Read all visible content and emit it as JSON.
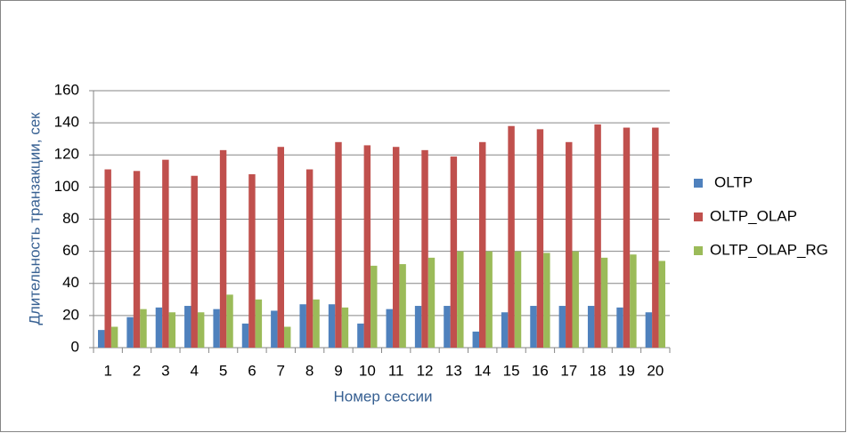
{
  "chart_data": {
    "type": "bar",
    "x_label": "Номер сессии",
    "y_label": "Длительность транзакции, сек",
    "categories": [
      "1",
      "2",
      "3",
      "4",
      "5",
      "6",
      "7",
      "8",
      "9",
      "10",
      "11",
      "12",
      "13",
      "14",
      "15",
      "16",
      "17",
      "18",
      "19",
      "20"
    ],
    "series": [
      {
        "name": "OLTP",
        "color": "#4f81bd",
        "values": [
          11,
          19,
          25,
          26,
          24,
          15,
          23,
          27,
          27,
          15,
          24,
          26,
          26,
          10,
          22,
          26,
          26,
          26,
          25,
          22
        ]
      },
      {
        "name": "OLTP_OLAP",
        "color": "#c0504d",
        "values": [
          111,
          110,
          117,
          107,
          123,
          108,
          125,
          111,
          128,
          126,
          125,
          123,
          119,
          128,
          138,
          136,
          128,
          139,
          137,
          137
        ]
      },
      {
        "name": "OLTP_OLAP_RG",
        "color": "#9bbb59",
        "values": [
          13,
          24,
          22,
          22,
          33,
          30,
          13,
          30,
          25,
          51,
          52,
          56,
          60,
          60,
          60,
          59,
          60,
          56,
          58,
          54
        ]
      }
    ],
    "ylim": [
      0,
      160
    ],
    "yticks": [
      0,
      20,
      40,
      60,
      80,
      100,
      120,
      140,
      160
    ],
    "grid": true,
    "legend": "right"
  }
}
